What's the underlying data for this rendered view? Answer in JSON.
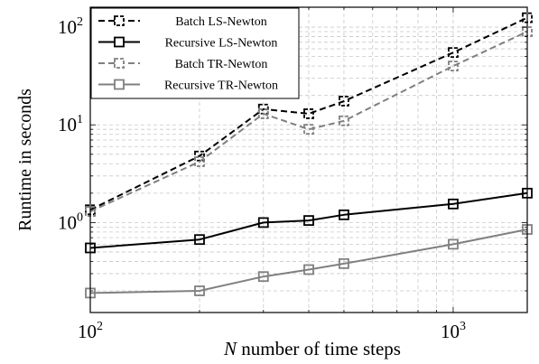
{
  "chart_data": {
    "type": "line",
    "title": "",
    "xlabel": "N number of time steps",
    "ylabel": "Runtime in seconds",
    "x_scale": "log",
    "y_scale": "log",
    "xlim": [
      100,
      1600
    ],
    "ylim": [
      0.12,
      160
    ],
    "x_ticks": [
      {
        "value": 100,
        "base": "10",
        "exp": "2"
      },
      {
        "value": 1000,
        "base": "10",
        "exp": "3"
      }
    ],
    "y_ticks": [
      {
        "value": 1,
        "base": "10",
        "exp": "0"
      },
      {
        "value": 10,
        "base": "10",
        "exp": "1"
      },
      {
        "value": 100,
        "base": "10",
        "exp": "2"
      }
    ],
    "grid": true,
    "legend_position": "top-left",
    "x": [
      100,
      200,
      300,
      400,
      500,
      1000,
      1600
    ],
    "series": [
      {
        "name": "Batch LS-Newton",
        "color": "#000000",
        "dashed": true,
        "marker": "square-open",
        "values": [
          1.35,
          4.8,
          14.5,
          13.0,
          17.5,
          55,
          125
        ]
      },
      {
        "name": "Recursive LS-Newton",
        "color": "#000000",
        "dashed": false,
        "marker": "square-open",
        "values": [
          0.55,
          0.67,
          1.0,
          1.05,
          1.2,
          1.55,
          2.0
        ]
      },
      {
        "name": "Batch TR-Newton",
        "color": "#808080",
        "dashed": true,
        "marker": "square-open",
        "values": [
          1.3,
          4.2,
          13.0,
          9.0,
          11.0,
          40,
          90
        ]
      },
      {
        "name": "Recursive TR-Newton",
        "color": "#808080",
        "dashed": false,
        "marker": "square-open",
        "values": [
          0.19,
          0.2,
          0.28,
          0.33,
          0.38,
          0.6,
          0.85
        ]
      }
    ]
  }
}
